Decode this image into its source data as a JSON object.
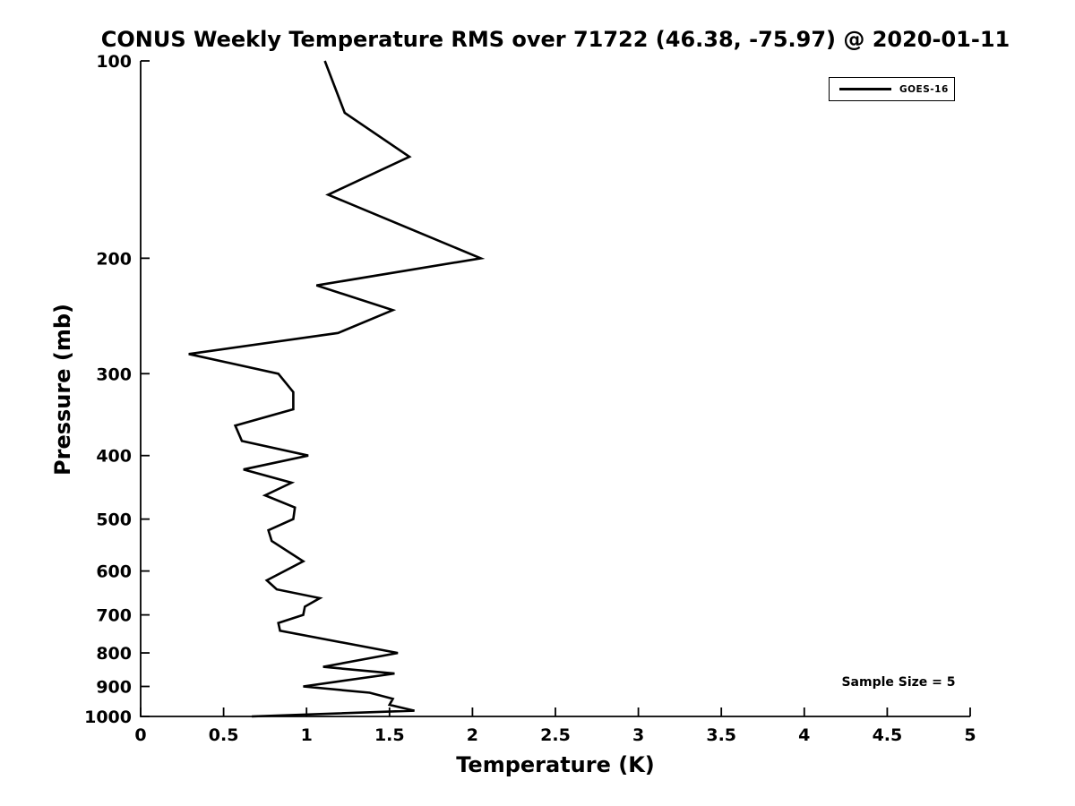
{
  "figure": {
    "background_color": "#ffffff",
    "accent_color": "#000000"
  },
  "chart_data": {
    "type": "line",
    "title": "CONUS Weekly Temperature RMS over 71722 (46.38, -75.97) @ 2020-01-11",
    "xlabel": "Temperature (K)",
    "ylabel": "Pressure (mb)",
    "xlim": [
      0,
      5
    ],
    "ylim": [
      100,
      1000
    ],
    "x_ticks": [
      0,
      0.5,
      1,
      1.5,
      2,
      2.5,
      3,
      3.5,
      4,
      4.5,
      5
    ],
    "y_ticks": [
      100,
      200,
      300,
      400,
      500,
      600,
      700,
      800,
      900,
      1000
    ],
    "y_scale": "log",
    "y_inverted": true,
    "grid": false,
    "legend_position": "top-right",
    "series": [
      {
        "name": "GOES-16",
        "color": "#000000",
        "points": [
          {
            "pressure_mb": 100,
            "rms_k": 1.11
          },
          {
            "pressure_mb": 120,
            "rms_k": 1.23
          },
          {
            "pressure_mb": 140,
            "rms_k": 1.62
          },
          {
            "pressure_mb": 160,
            "rms_k": 1.13
          },
          {
            "pressure_mb": 200,
            "rms_k": 2.05
          },
          {
            "pressure_mb": 220,
            "rms_k": 1.06
          },
          {
            "pressure_mb": 240,
            "rms_k": 1.52
          },
          {
            "pressure_mb": 260,
            "rms_k": 1.19
          },
          {
            "pressure_mb": 280,
            "rms_k": 0.29
          },
          {
            "pressure_mb": 300,
            "rms_k": 0.83
          },
          {
            "pressure_mb": 320,
            "rms_k": 0.92
          },
          {
            "pressure_mb": 340,
            "rms_k": 0.92
          },
          {
            "pressure_mb": 360,
            "rms_k": 0.57
          },
          {
            "pressure_mb": 380,
            "rms_k": 0.61
          },
          {
            "pressure_mb": 400,
            "rms_k": 1.01
          },
          {
            "pressure_mb": 420,
            "rms_k": 0.62
          },
          {
            "pressure_mb": 440,
            "rms_k": 0.91
          },
          {
            "pressure_mb": 460,
            "rms_k": 0.75
          },
          {
            "pressure_mb": 480,
            "rms_k": 0.93
          },
          {
            "pressure_mb": 500,
            "rms_k": 0.92
          },
          {
            "pressure_mb": 520,
            "rms_k": 0.77
          },
          {
            "pressure_mb": 540,
            "rms_k": 0.79
          },
          {
            "pressure_mb": 580,
            "rms_k": 0.98
          },
          {
            "pressure_mb": 620,
            "rms_k": 0.76
          },
          {
            "pressure_mb": 640,
            "rms_k": 0.82
          },
          {
            "pressure_mb": 660,
            "rms_k": 1.08
          },
          {
            "pressure_mb": 680,
            "rms_k": 0.99
          },
          {
            "pressure_mb": 700,
            "rms_k": 0.98
          },
          {
            "pressure_mb": 720,
            "rms_k": 0.83
          },
          {
            "pressure_mb": 740,
            "rms_k": 0.84
          },
          {
            "pressure_mb": 800,
            "rms_k": 1.55
          },
          {
            "pressure_mb": 840,
            "rms_k": 1.1
          },
          {
            "pressure_mb": 860,
            "rms_k": 1.53
          },
          {
            "pressure_mb": 900,
            "rms_k": 0.98
          },
          {
            "pressure_mb": 920,
            "rms_k": 1.38
          },
          {
            "pressure_mb": 940,
            "rms_k": 1.52
          },
          {
            "pressure_mb": 960,
            "rms_k": 1.5
          },
          {
            "pressure_mb": 980,
            "rms_k": 1.65
          },
          {
            "pressure_mb": 1000,
            "rms_k": 0.67
          }
        ]
      }
    ],
    "annotations": [
      {
        "text": "Sample Size = 5",
        "position": "bottom-right"
      }
    ]
  }
}
